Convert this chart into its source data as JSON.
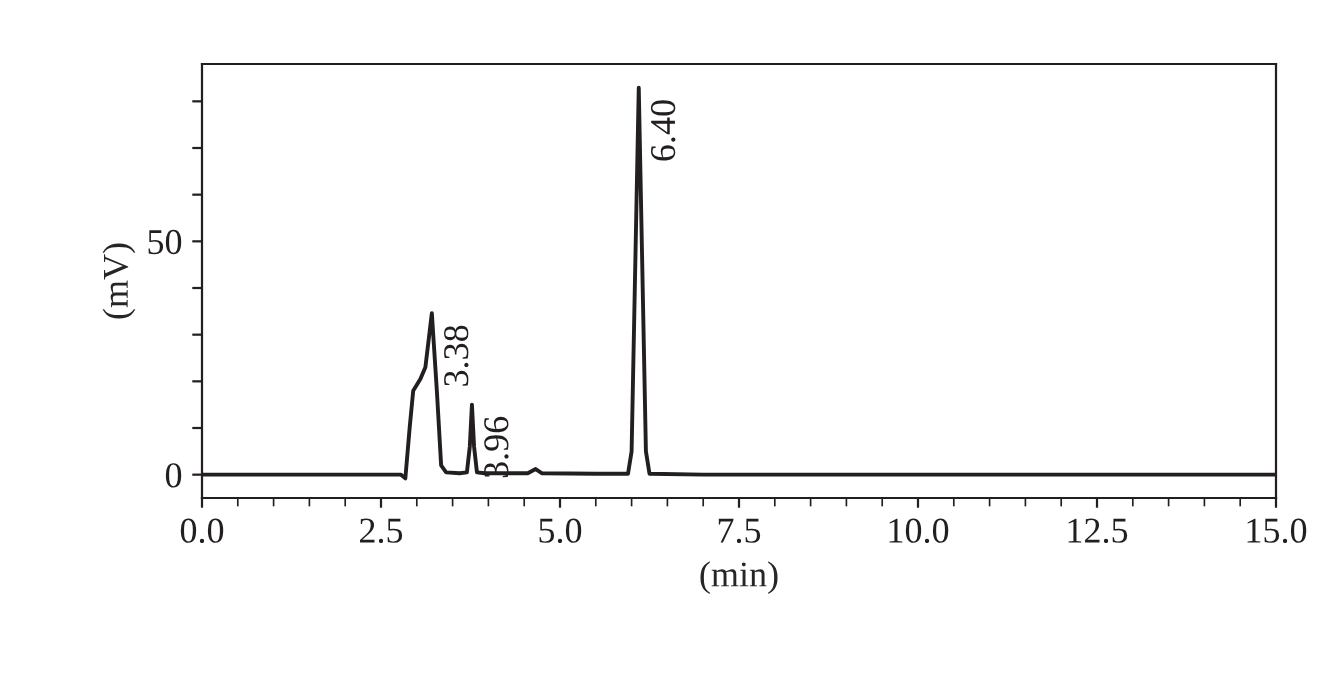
{
  "chart_data": {
    "type": "line",
    "xlabel": "(min)",
    "ylabel": "(mV)",
    "series": [
      {
        "color": "#231f20",
        "x": [
          0,
          2.78,
          2.84,
          2.9,
          2.95,
          3.05,
          3.12,
          3.21,
          3.28,
          3.34,
          3.41,
          3.6,
          3.7,
          3.74,
          3.77,
          3.8,
          3.84,
          3.95,
          4.55,
          4.66,
          4.75,
          5.5,
          5.95,
          6.0,
          6.1,
          6.2,
          6.25,
          7,
          15
        ],
        "values": [
          0,
          0,
          -0.8,
          10,
          18,
          20.5,
          23,
          34.6,
          18,
          2,
          0.5,
          0.3,
          0.5,
          6,
          15,
          6,
          0.5,
          0.3,
          0.3,
          1.2,
          0.3,
          0.2,
          0.2,
          5,
          82.9,
          5,
          0.2,
          0,
          0
        ]
      }
    ],
    "annotations": [
      {
        "text": "3.38",
        "x": 3.21,
        "y": 34.6
      },
      {
        "text": "3.96",
        "x": 3.77,
        "y": 15
      },
      {
        "text": "6.40",
        "x": 6.1,
        "y": 82.9
      }
    ],
    "xlim": [
      0,
      15
    ],
    "xticks": [
      {
        "value": 0,
        "label": "0.0"
      },
      {
        "value": 2.5,
        "label": "2.5"
      },
      {
        "value": 5,
        "label": "5.0"
      },
      {
        "value": 7.5,
        "label": "7.5"
      },
      {
        "value": 10,
        "label": "10.0"
      },
      {
        "value": 12.5,
        "label": "12.5"
      },
      {
        "value": 15,
        "label": "15.0"
      }
    ],
    "ylim": [
      -5,
      88
    ],
    "yticks": [
      0,
      {
        "value": 10,
        "label": null
      },
      {
        "value": 20,
        "label": null
      },
      {
        "value": 30,
        "label": null
      },
      {
        "value": 40,
        "label": null
      },
      50,
      {
        "value": 60,
        "label": null
      },
      {
        "value": 70,
        "label": null
      },
      {
        "value": 80,
        "label": null
      }
    ],
    "grid": false,
    "legend": false
  }
}
